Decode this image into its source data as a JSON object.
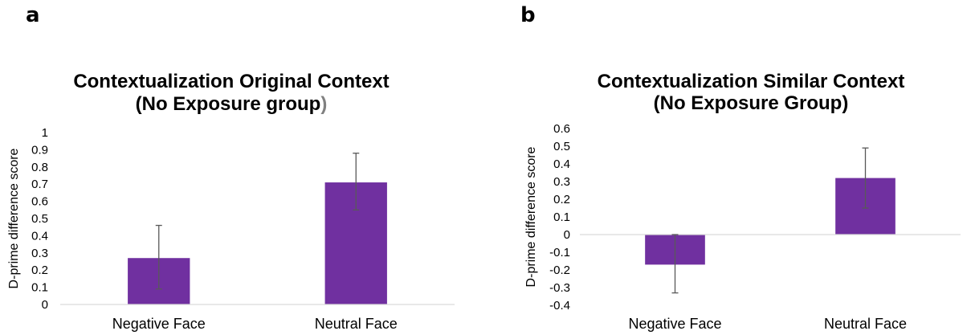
{
  "panels": [
    {
      "letter": "a"
    },
    {
      "letter": "b"
    }
  ],
  "colors": {
    "bar": "#7030a0",
    "axis": "#d9d9d9",
    "error": "#595959"
  },
  "chart_data": [
    {
      "type": "bar",
      "title_lines": [
        "Contextualization Original Context",
        "(No Exposure group)"
      ],
      "title_paren_color": "#808080",
      "xlabel": "",
      "ylabel": "D-prime difference score",
      "categories": [
        "Negative Face",
        "Neutral Face"
      ],
      "values": [
        0.27,
        0.71
      ],
      "error_low": [
        0.09,
        0.55
      ],
      "error_high": [
        0.46,
        0.88
      ],
      "ylim": [
        0,
        1
      ],
      "yticks": [
        0,
        0.1,
        0.2,
        0.3,
        0.4,
        0.5,
        0.6,
        0.7,
        0.8,
        0.9,
        1
      ],
      "ytick_labels": [
        "0",
        "0.1",
        "0.2",
        "0.3",
        "0.4",
        "0.5",
        "0.6",
        "0.7",
        "0.8",
        "0.9",
        "1"
      ],
      "grid": false,
      "legend": "none"
    },
    {
      "type": "bar",
      "title_lines": [
        "Contextualization Similar Context",
        "(No Exposure Group)"
      ],
      "xlabel": "",
      "ylabel": "D-prime difference score",
      "categories": [
        "Negative Face",
        "Neutral Face"
      ],
      "values": [
        -0.17,
        0.32
      ],
      "error_low": [
        -0.33,
        0.15
      ],
      "error_high": [
        0.0,
        0.49
      ],
      "ylim": [
        -0.4,
        0.6
      ],
      "yticks": [
        -0.4,
        -0.3,
        -0.2,
        -0.1,
        0,
        0.1,
        0.2,
        0.3,
        0.4,
        0.5,
        0.6
      ],
      "ytick_labels": [
        "-0.4",
        "-0.3",
        "-0.2",
        "-0.1",
        "0",
        "0.1",
        "0.2",
        "0.3",
        "0.4",
        "0.5",
        "0.6"
      ],
      "grid": false,
      "legend": "none"
    }
  ]
}
